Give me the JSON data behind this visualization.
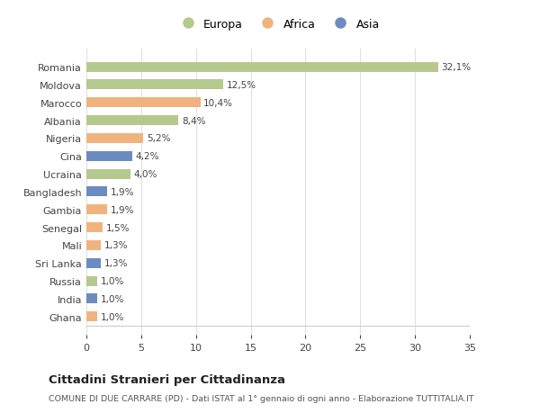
{
  "countries": [
    "Romania",
    "Moldova",
    "Marocco",
    "Albania",
    "Nigeria",
    "Cina",
    "Ucraina",
    "Bangladesh",
    "Gambia",
    "Senegal",
    "Mali",
    "Sri Lanka",
    "Russia",
    "India",
    "Ghana"
  ],
  "values": [
    32.1,
    12.5,
    10.4,
    8.4,
    5.2,
    4.2,
    4.0,
    1.9,
    1.9,
    1.5,
    1.3,
    1.3,
    1.0,
    1.0,
    1.0
  ],
  "labels": [
    "32,1%",
    "12,5%",
    "10,4%",
    "8,4%",
    "5,2%",
    "4,2%",
    "4,0%",
    "1,9%",
    "1,9%",
    "1,5%",
    "1,3%",
    "1,3%",
    "1,0%",
    "1,0%",
    "1,0%"
  ],
  "continents": [
    "Europa",
    "Europa",
    "Africa",
    "Europa",
    "Africa",
    "Asia",
    "Europa",
    "Asia",
    "Africa",
    "Africa",
    "Africa",
    "Asia",
    "Europa",
    "Asia",
    "Africa"
  ],
  "colors": {
    "Europa": "#b5c98e",
    "Africa": "#f0b37e",
    "Asia": "#6b8cbf"
  },
  "title": "Cittadini Stranieri per Cittadinanza",
  "subtitle": "COMUNE DI DUE CARRARE (PD) - Dati ISTAT al 1° gennaio di ogni anno - Elaborazione TUTTITALIA.IT",
  "xlim": [
    0,
    35
  ],
  "xticks": [
    0,
    5,
    10,
    15,
    20,
    25,
    30,
    35
  ],
  "bg_color": "#ffffff",
  "grid_color": "#e0e0e0",
  "bar_height": 0.55
}
